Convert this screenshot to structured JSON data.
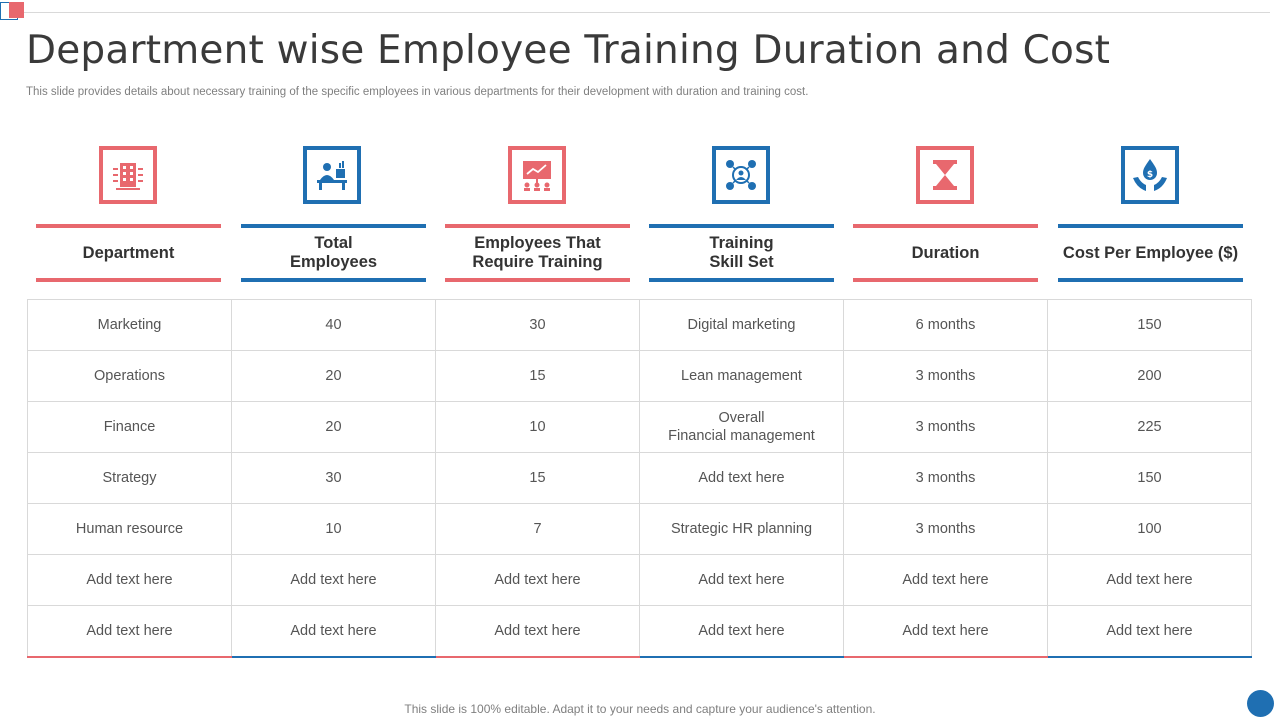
{
  "title": "Department wise Employee Training Duration and Cost",
  "subtitle": "This slide provides details about necessary training of the specific employees in various departments for their development with duration and training cost.",
  "footer": "This slide is 100% editable. Adapt it to your needs and capture your audience's attention.",
  "colors": {
    "accent_red": "#e8686e",
    "accent_blue": "#1f6fb2",
    "grid": "#d9d9d9"
  },
  "columns": [
    {
      "label": "Department",
      "icon": "building-icon",
      "color": "red"
    },
    {
      "label": "Total\nEmployees",
      "icon": "employee-desk-icon",
      "color": "blue"
    },
    {
      "label": "Employees That\nRequire Training",
      "icon": "training-board-icon",
      "color": "red"
    },
    {
      "label": "Training\nSkill Set",
      "icon": "skill-network-icon",
      "color": "blue"
    },
    {
      "label": "Duration",
      "icon": "hourglass-icon",
      "color": "red"
    },
    {
      "label": "Cost Per Employee ($)",
      "icon": "dollar-hands-icon",
      "color": "blue"
    }
  ],
  "rows": [
    [
      "Marketing",
      "40",
      "30",
      "Digital marketing",
      "6 months",
      "150"
    ],
    [
      "Operations",
      "20",
      "15",
      "Lean management",
      "3 months",
      "200"
    ],
    [
      "Finance",
      "20",
      "10",
      "Overall\nFinancial management",
      "3 months",
      "225"
    ],
    [
      "Strategy",
      "30",
      "15",
      "Add text here",
      "3 months",
      "150"
    ],
    [
      "Human resource",
      "10",
      "7",
      "Strategic HR planning",
      "3 months",
      "100"
    ],
    [
      "Add text here",
      "Add text here",
      "Add text here",
      "Add text here",
      "Add text here",
      "Add text here"
    ],
    [
      "Add text here",
      "Add text here",
      "Add text here",
      "Add text here",
      "Add text here",
      "Add text here"
    ]
  ]
}
